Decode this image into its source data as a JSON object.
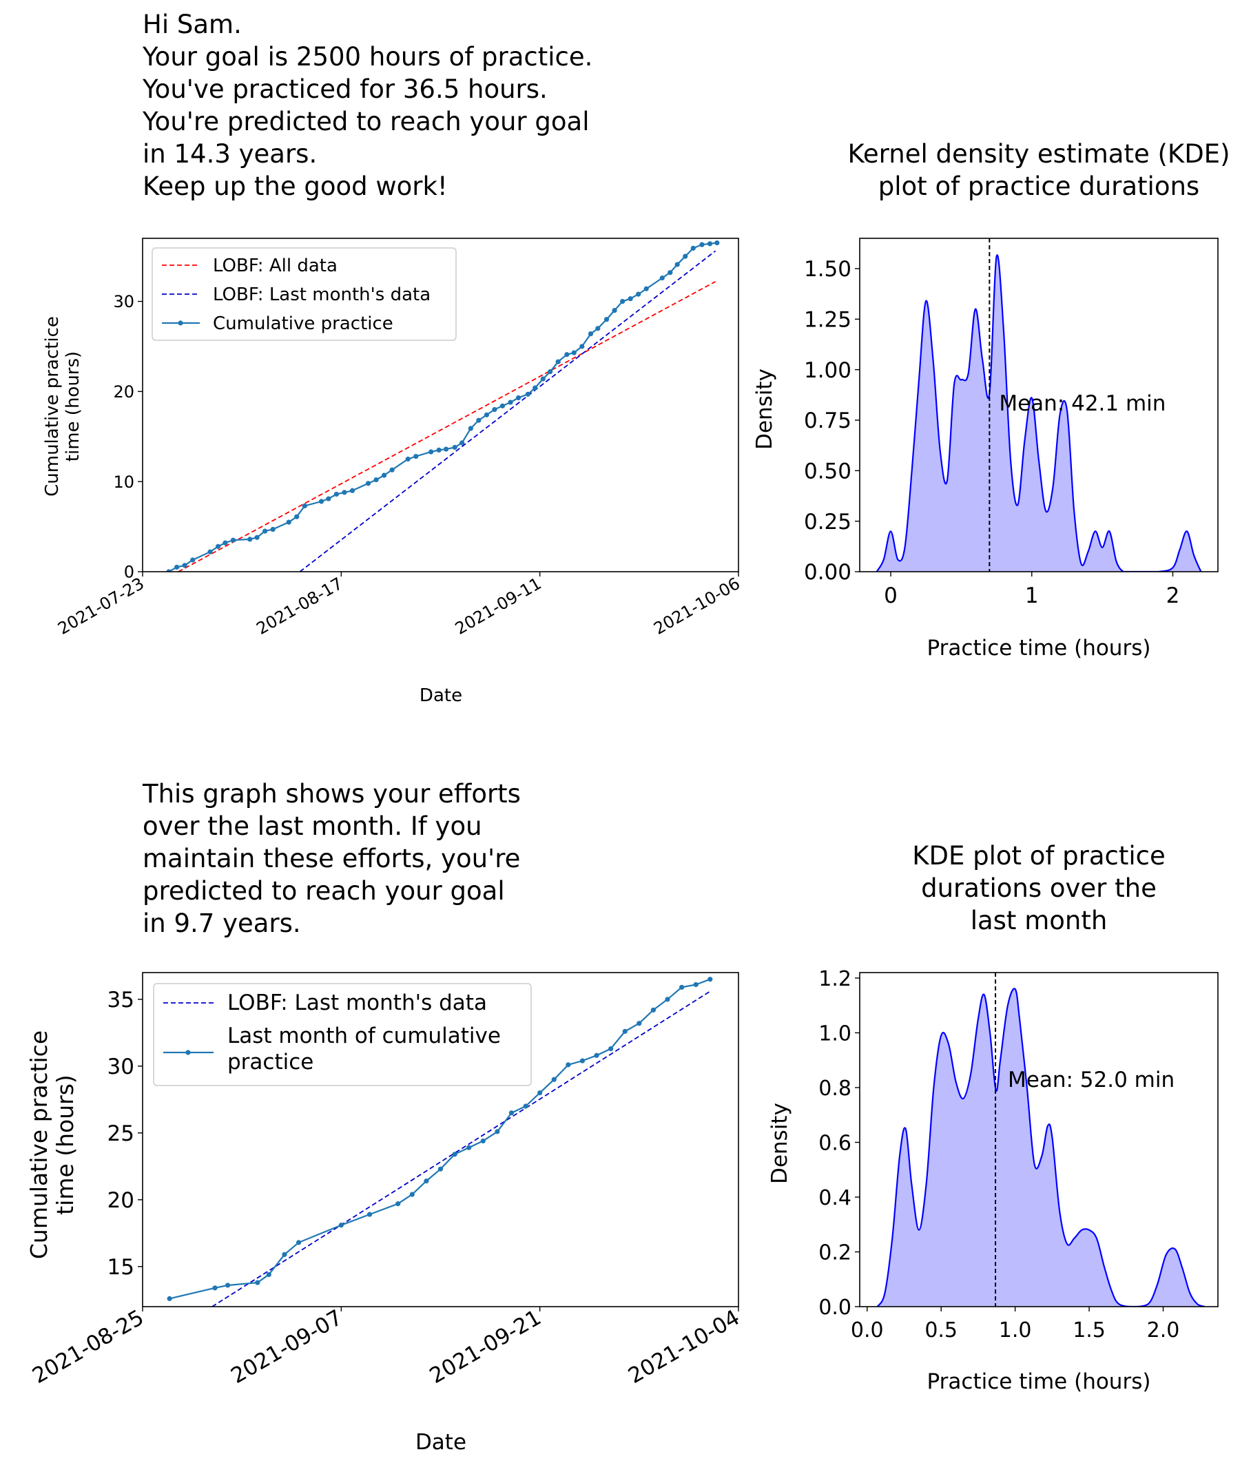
{
  "panel1_text": {
    "lines": [
      "Hi Sam.",
      "Your goal is 2500 hours of practice.",
      "You've practiced for 36.5 hours.",
      "You're predicted to reach your goal",
      "in 14.3 years.",
      "Keep up the good work!"
    ]
  },
  "panel3_text": {
    "lines": [
      "This graph shows your efforts",
      "over the last month. If you",
      "maintain these efforts, you're",
      "predicted to reach your goal",
      "in 9.7 years."
    ]
  },
  "chart_data": [
    {
      "id": "cumulative_all",
      "type": "line",
      "title": "",
      "xlabel": "Date",
      "ylabel_lines": [
        "Cumulative practice",
        "time (hours)"
      ],
      "xticks": [
        "2021-07-23",
        "2021-08-17",
        "2021-09-11",
        "2021-10-06"
      ],
      "xlim": [
        0,
        75
      ],
      "ylim": [
        0,
        37
      ],
      "yticks": [
        0,
        10,
        20,
        30
      ],
      "legend_position": "upper-left",
      "legend": [
        "LOBF: All data",
        "LOBF: Last month's data",
        "Cumulative practice"
      ],
      "series": [
        {
          "name": "LOBF: All data",
          "style": "dashed",
          "color": "#ff0000",
          "x": [
            4.5,
            72.1
          ],
          "y": [
            0.0,
            32.2
          ]
        },
        {
          "name": "LOBF: Last month's data",
          "style": "dashed",
          "color": "#0000cc",
          "x": [
            19.8,
            72.1
          ],
          "y": [
            0.0,
            35.6
          ]
        },
        {
          "name": "Cumulative practice",
          "style": "solid-markers",
          "color": "#1f77b4",
          "x": [
            3.3,
            4.3,
            5.3,
            6.3,
            8.5,
            9.5,
            10.4,
            11.4,
            13.5,
            14.4,
            15.4,
            16.4,
            18.4,
            19.4,
            20.4,
            22.5,
            23.4,
            24.4,
            25.4,
            26.4,
            28.4,
            29.4,
            30.4,
            31.4,
            33.4,
            34.4,
            36.3,
            37.3,
            38.2,
            39.3,
            40.2,
            41.3,
            42.3,
            43.3,
            44.3,
            45.3,
            46.3,
            47.3,
            48.5,
            49.4,
            50.4,
            51.3,
            52.3,
            53.4,
            54.3,
            55.3,
            56.4,
            57.3,
            58.4,
            59.4,
            60.4,
            61.4,
            62.4,
            63.4,
            65.4,
            66.4,
            67.3,
            68.3,
            69.3,
            70.4,
            71.4,
            72.3
          ],
          "y": [
            0.0,
            0.5,
            0.7,
            1.3,
            2.2,
            2.8,
            3.2,
            3.5,
            3.6,
            3.8,
            4.5,
            4.7,
            5.5,
            6.1,
            7.3,
            7.8,
            8.1,
            8.6,
            8.8,
            9.0,
            9.8,
            10.2,
            10.7,
            11.3,
            12.5,
            12.8,
            13.3,
            13.5,
            13.6,
            13.8,
            14.3,
            15.9,
            16.8,
            17.4,
            18.0,
            18.4,
            18.8,
            19.3,
            19.7,
            20.4,
            21.4,
            22.2,
            23.3,
            24.1,
            24.3,
            25.0,
            26.4,
            27.0,
            28.0,
            29.0,
            30.0,
            30.3,
            30.8,
            31.4,
            32.6,
            33.2,
            34.1,
            35.0,
            35.9,
            36.3,
            36.4,
            36.5
          ]
        }
      ]
    },
    {
      "id": "kde_all",
      "type": "area",
      "title_lines": [
        "Kernel density estimate (KDE)",
        "plot of practice durations"
      ],
      "xlabel": "Practice time (hours)",
      "ylabel": "Density",
      "xlim": [
        -0.22,
        2.32
      ],
      "ylim": [
        0.0,
        1.65
      ],
      "xticks": [
        0,
        1,
        2
      ],
      "yticks": [
        0.0,
        0.25,
        0.5,
        0.75,
        1.0,
        1.25,
        1.5
      ],
      "ytick_labels": [
        "0.00",
        "0.25",
        "0.50",
        "0.75",
        "1.00",
        "1.25",
        "1.50"
      ],
      "mean_line_x": 0.7,
      "annotation": "Mean: 42.1 min",
      "fill_color": "#bcbcff",
      "line_color": "#0000ff",
      "x": [
        -0.1,
        -0.05,
        0.0,
        0.05,
        0.1,
        0.15,
        0.2,
        0.25,
        0.3,
        0.35,
        0.4,
        0.45,
        0.5,
        0.55,
        0.6,
        0.65,
        0.7,
        0.75,
        0.8,
        0.85,
        0.9,
        0.95,
        1.0,
        1.05,
        1.1,
        1.15,
        1.2,
        1.25,
        1.3,
        1.35,
        1.4,
        1.45,
        1.5,
        1.55,
        1.6,
        1.65,
        1.7,
        1.8,
        1.9,
        2.0,
        2.05,
        2.1,
        2.15,
        2.2
      ],
      "y": [
        0.0,
        0.06,
        0.2,
        0.06,
        0.12,
        0.5,
        0.95,
        1.34,
        1.05,
        0.6,
        0.45,
        0.93,
        0.95,
        0.98,
        1.3,
        1.05,
        0.88,
        1.56,
        1.2,
        0.55,
        0.33,
        0.65,
        0.86,
        0.55,
        0.3,
        0.42,
        0.78,
        0.8,
        0.3,
        0.04,
        0.1,
        0.2,
        0.12,
        0.2,
        0.05,
        0.0,
        0.0,
        0.0,
        0.0,
        0.02,
        0.11,
        0.2,
        0.08,
        0.0
      ]
    },
    {
      "id": "cumulative_last_month",
      "type": "line",
      "title": "",
      "xlabel": "Date",
      "ylabel_lines": [
        "Cumulative practice",
        "time (hours)"
      ],
      "xticks": [
        "2021-08-25",
        "2021-09-07",
        "2021-09-21",
        "2021-10-04"
      ],
      "xlim": [
        0,
        42
      ],
      "ylim": [
        12,
        37
      ],
      "yticks": [
        15,
        20,
        25,
        30,
        35
      ],
      "legend_position": "upper-left",
      "legend": [
        "LOBF: Last month's data",
        "Last month of cumulative practice"
      ],
      "legend_lines": [
        [
          "LOBF: Last month's data"
        ],
        [
          "Last month of cumulative",
          "practice"
        ]
      ],
      "series": [
        {
          "name": "LOBF: Last month's data",
          "style": "dashed",
          "color": "#0000cc",
          "x": [
            4.9,
            40.0
          ],
          "y": [
            12.0,
            35.6
          ]
        },
        {
          "name": "Last month of cumulative practice",
          "style": "solid-markers",
          "color": "#1f77b4",
          "x": [
            1.9,
            5.1,
            6.0,
            8.1,
            8.9,
            10.0,
            11.0,
            14.0,
            16.0,
            18.0,
            19.0,
            20.0,
            21.0,
            22.0,
            23.0,
            24.0,
            25.0,
            26.0,
            27.0,
            28.0,
            29.0,
            30.0,
            31.0,
            32.0,
            33.0,
            34.0,
            35.0,
            36.0,
            37.0,
            38.0,
            39.0,
            40.0
          ],
          "y": [
            12.6,
            13.4,
            13.6,
            13.8,
            14.4,
            15.9,
            16.8,
            18.1,
            18.9,
            19.7,
            20.4,
            21.4,
            22.3,
            23.4,
            23.9,
            24.4,
            25.1,
            26.5,
            27.0,
            28.0,
            29.0,
            30.1,
            30.4,
            30.8,
            31.3,
            32.6,
            33.2,
            34.2,
            35.0,
            35.9,
            36.1,
            36.5
          ]
        }
      ]
    },
    {
      "id": "kde_last_month",
      "type": "area",
      "title_lines": [
        "KDE plot of practice",
        "durations over the",
        "last month"
      ],
      "xlabel": "Practice time (hours)",
      "ylabel": "Density",
      "xlim": [
        -0.05,
        2.37
      ],
      "ylim": [
        0.0,
        1.22
      ],
      "xticks": [
        0.0,
        0.5,
        1.0,
        1.5,
        2.0
      ],
      "ytick_labels": [
        "0.0",
        "0.2",
        "0.4",
        "0.6",
        "0.8",
        "1.0",
        "1.2"
      ],
      "yticks": [
        0.0,
        0.2,
        0.4,
        0.6,
        0.8,
        1.0,
        1.2
      ],
      "mean_line_x": 0.867,
      "annotation": "Mean: 52.0 min",
      "fill_color": "#bcbcff",
      "line_color": "#0000ff",
      "x": [
        0.07,
        0.12,
        0.17,
        0.22,
        0.26,
        0.3,
        0.35,
        0.4,
        0.45,
        0.5,
        0.55,
        0.6,
        0.65,
        0.7,
        0.75,
        0.79,
        0.83,
        0.87,
        0.9,
        0.95,
        1.0,
        1.03,
        1.08,
        1.13,
        1.18,
        1.22,
        1.25,
        1.3,
        1.35,
        1.4,
        1.45,
        1.5,
        1.55,
        1.6,
        1.65,
        1.7,
        1.8,
        1.9,
        1.96,
        2.02,
        2.08,
        2.13,
        2.18,
        2.23,
        2.28
      ],
      "y": [
        0.0,
        0.05,
        0.25,
        0.55,
        0.65,
        0.45,
        0.28,
        0.45,
        0.8,
        0.99,
        0.96,
        0.82,
        0.76,
        0.85,
        1.05,
        1.14,
        1.0,
        0.79,
        0.9,
        1.1,
        1.16,
        1.05,
        0.8,
        0.52,
        0.55,
        0.66,
        0.62,
        0.35,
        0.23,
        0.25,
        0.28,
        0.28,
        0.25,
        0.15,
        0.06,
        0.01,
        0.0,
        0.01,
        0.08,
        0.19,
        0.21,
        0.14,
        0.05,
        0.01,
        0.0
      ]
    }
  ]
}
